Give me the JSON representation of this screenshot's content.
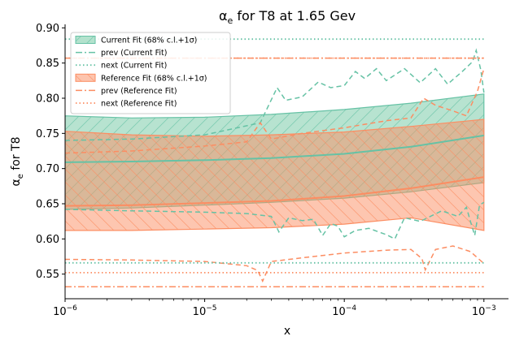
{
  "chart_data": {
    "type": "line",
    "title": "αe for T8 at 1.65 Gev",
    "title_parts": {
      "main": "α",
      "sub": "e",
      "rest": " for T8 at 1.65 Gev"
    },
    "xlabel": "x",
    "ylabel": "αe for T8",
    "ylabel_parts": {
      "main": "α",
      "sub": "e",
      "rest": " for T8"
    },
    "x_scale": "log",
    "xlim": [
      1e-06,
      0.0015
    ],
    "ylim": [
      0.515,
      0.905
    ],
    "x_ticks": [
      {
        "value": 1e-06,
        "base": "10",
        "exp": "−6"
      },
      {
        "value": 1e-05,
        "base": "10",
        "exp": "−5"
      },
      {
        "value": 0.0001,
        "base": "10",
        "exp": "−4"
      },
      {
        "value": 0.001,
        "base": "10",
        "exp": "−3"
      }
    ],
    "y_ticks": [
      0.55,
      0.6,
      0.65,
      0.7,
      0.75,
      0.8,
      0.85,
      0.9
    ],
    "y_tick_labels": [
      "0.55",
      "0.60",
      "0.65",
      "0.70",
      "0.75",
      "0.80",
      "0.85",
      "0.90"
    ],
    "grid": false,
    "legend_position": "top-left",
    "colors": {
      "current": "#66c2a5",
      "current_fill": "#b3e2cd",
      "reference": "#fc8d62",
      "reference_fill": "#fdc4ad"
    },
    "series": [
      {
        "name": "Current Fit (68% c.l.+1σ)",
        "kind": "band",
        "color_key": "current",
        "x": [
          1e-06,
          3e-06,
          1e-05,
          3e-05,
          0.0001,
          0.0003,
          0.001
        ],
        "central": [
          0.709,
          0.71,
          0.712,
          0.715,
          0.721,
          0.731,
          0.747
        ],
        "upper": [
          0.775,
          0.772,
          0.773,
          0.777,
          0.784,
          0.793,
          0.806
        ],
        "lower": [
          0.642,
          0.644,
          0.648,
          0.652,
          0.658,
          0.667,
          0.68
        ]
      },
      {
        "name": "prev (Current Fit)",
        "kind": "dashed",
        "color_key": "current",
        "upper_x": [
          1e-06,
          3e-06,
          1e-05,
          2.5e-05,
          3.3e-05,
          3.8e-05,
          5e-05,
          6.5e-05,
          8e-05,
          0.0001,
          0.00012,
          0.00014,
          0.00017,
          0.0002,
          0.00027,
          0.00035,
          0.00045,
          0.00055,
          0.0007,
          0.00083,
          0.00088,
          0.00095,
          0.001
        ],
        "upper_y": [
          0.74,
          0.742,
          0.748,
          0.765,
          0.815,
          0.797,
          0.802,
          0.823,
          0.815,
          0.818,
          0.838,
          0.828,
          0.842,
          0.825,
          0.842,
          0.822,
          0.842,
          0.82,
          0.838,
          0.852,
          0.868,
          0.84,
          0.808
        ],
        "lower_x": [
          1e-06,
          3e-06,
          1e-05,
          2e-05,
          3e-05,
          3.4e-05,
          4e-05,
          5e-05,
          6e-05,
          7e-05,
          8e-05,
          9e-05,
          0.0001,
          0.00012,
          0.00015,
          0.0002,
          0.00023,
          0.00027,
          0.00035,
          0.0005,
          0.00065,
          0.00075,
          0.0008,
          0.00086,
          0.00093,
          0.001
        ],
        "lower_y": [
          0.642,
          0.64,
          0.638,
          0.636,
          0.632,
          0.61,
          0.63,
          0.626,
          0.628,
          0.605,
          0.622,
          0.618,
          0.603,
          0.612,
          0.615,
          0.606,
          0.6,
          0.63,
          0.625,
          0.64,
          0.632,
          0.645,
          0.625,
          0.605,
          0.648,
          0.652
        ]
      },
      {
        "name": "next (Current Fit)",
        "kind": "dotted",
        "color_key": "current",
        "x": [
          1e-06,
          0.001
        ],
        "upper_y": [
          0.884,
          0.884
        ],
        "lower_y": [
          0.566,
          0.566
        ]
      },
      {
        "name": "Reference Fit (68% c.l.+1σ)",
        "kind": "band",
        "color_key": "reference",
        "hatch": "backslash",
        "x": [
          1e-06,
          3e-06,
          1e-05,
          3e-05,
          0.0001,
          0.0003,
          0.001
        ],
        "central": [
          0.647,
          0.648,
          0.651,
          0.654,
          0.661,
          0.672,
          0.688
        ],
        "upper": [
          0.753,
          0.748,
          0.746,
          0.748,
          0.752,
          0.76,
          0.77
        ],
        "lower": [
          0.612,
          0.612,
          0.614,
          0.616,
          0.621,
          0.63,
          0.612
        ]
      },
      {
        "name": "prev (Reference Fit)",
        "kind": "dashed",
        "color_key": "reference",
        "upper_x": [
          1e-06,
          3e-06,
          1e-05,
          2e-05,
          2.5e-05,
          3e-05,
          5e-05,
          0.0001,
          0.0002,
          0.0003,
          0.00037,
          0.00045,
          0.0006,
          0.00075,
          0.0009,
          0.001
        ],
        "upper_y": [
          0.722,
          0.725,
          0.732,
          0.738,
          0.765,
          0.742,
          0.75,
          0.758,
          0.768,
          0.772,
          0.8,
          0.79,
          0.782,
          0.775,
          0.81,
          0.842
        ],
        "lower_x": [
          1e-06,
          3e-06,
          1e-05,
          2e-05,
          2.4e-05,
          2.6e-05,
          3e-05,
          6e-05,
          0.0001,
          0.0002,
          0.0003,
          0.00036,
          0.00038,
          0.00045,
          0.0006,
          0.0008,
          0.001
        ],
        "lower_y": [
          0.571,
          0.57,
          0.568,
          0.562,
          0.555,
          0.54,
          0.568,
          0.575,
          0.58,
          0.584,
          0.585,
          0.572,
          0.556,
          0.585,
          0.59,
          0.582,
          0.565
        ]
      },
      {
        "name": "next (Reference Fit)",
        "kind": "dotted",
        "color_key": "reference",
        "x": [
          1e-06,
          0.001
        ],
        "upper_y": [
          0.857,
          0.857
        ],
        "lower_y": [
          0.552,
          0.552
        ]
      }
    ],
    "extra_lines": [
      {
        "style": "dashdot",
        "color_key": "reference",
        "x": [
          1e-06,
          0.001
        ],
        "y": [
          0.532,
          0.532
        ]
      },
      {
        "style": "dashdot",
        "color_key": "reference",
        "x": [
          1e-06,
          0.001
        ],
        "y": [
          0.857,
          0.857
        ]
      }
    ]
  }
}
